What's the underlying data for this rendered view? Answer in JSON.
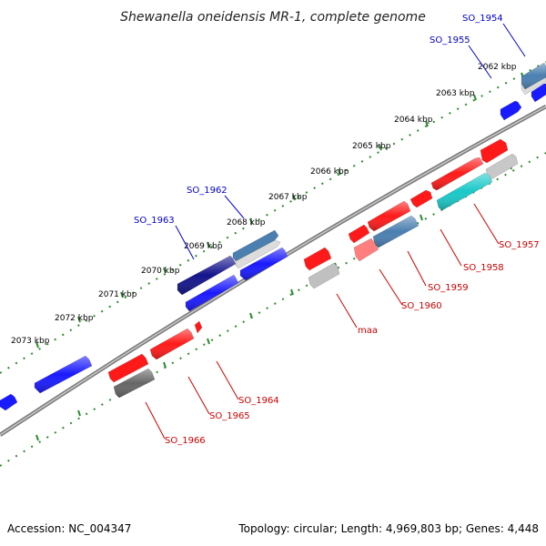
{
  "title": "Shewanella oneidensis MR-1, complete genome",
  "footer": {
    "accession": "Accession: NC_004347",
    "summary": "Topology: circular; Length: 4,969,803 bp; Genes: 4,448"
  },
  "colors": {
    "forward_label": "#0000cc",
    "reverse_label": "#cc0000",
    "backbone": "#808080",
    "tick": "#2e8b2e",
    "blue": "#1a1aff",
    "navy": "#14148c",
    "steel": "#4a7fb0",
    "red": "#ff1a1a",
    "pink": "#ff7f7f",
    "cyan": "#1ac8c8",
    "gray": "#9a9a9a",
    "dark_gray": "#666666"
  },
  "kbp_labels": [
    "2062 kbp",
    "2063 kbp",
    "2064 kbp",
    "2065 kbp",
    "2066 kbp",
    "2067 kbp",
    "2068 kbp",
    "2069 kbp",
    "2070 kbp",
    "2071 kbp",
    "2072 kbp",
    "2073 kbp"
  ],
  "forward_genes": [
    "SO_1954",
    "SO_1955",
    "SO_1962",
    "SO_1963"
  ],
  "reverse_genes": [
    "SO_1957",
    "SO_1958",
    "SO_1959",
    "SO_1960",
    "maa",
    "SO_1964",
    "SO_1965",
    "SO_1966"
  ]
}
